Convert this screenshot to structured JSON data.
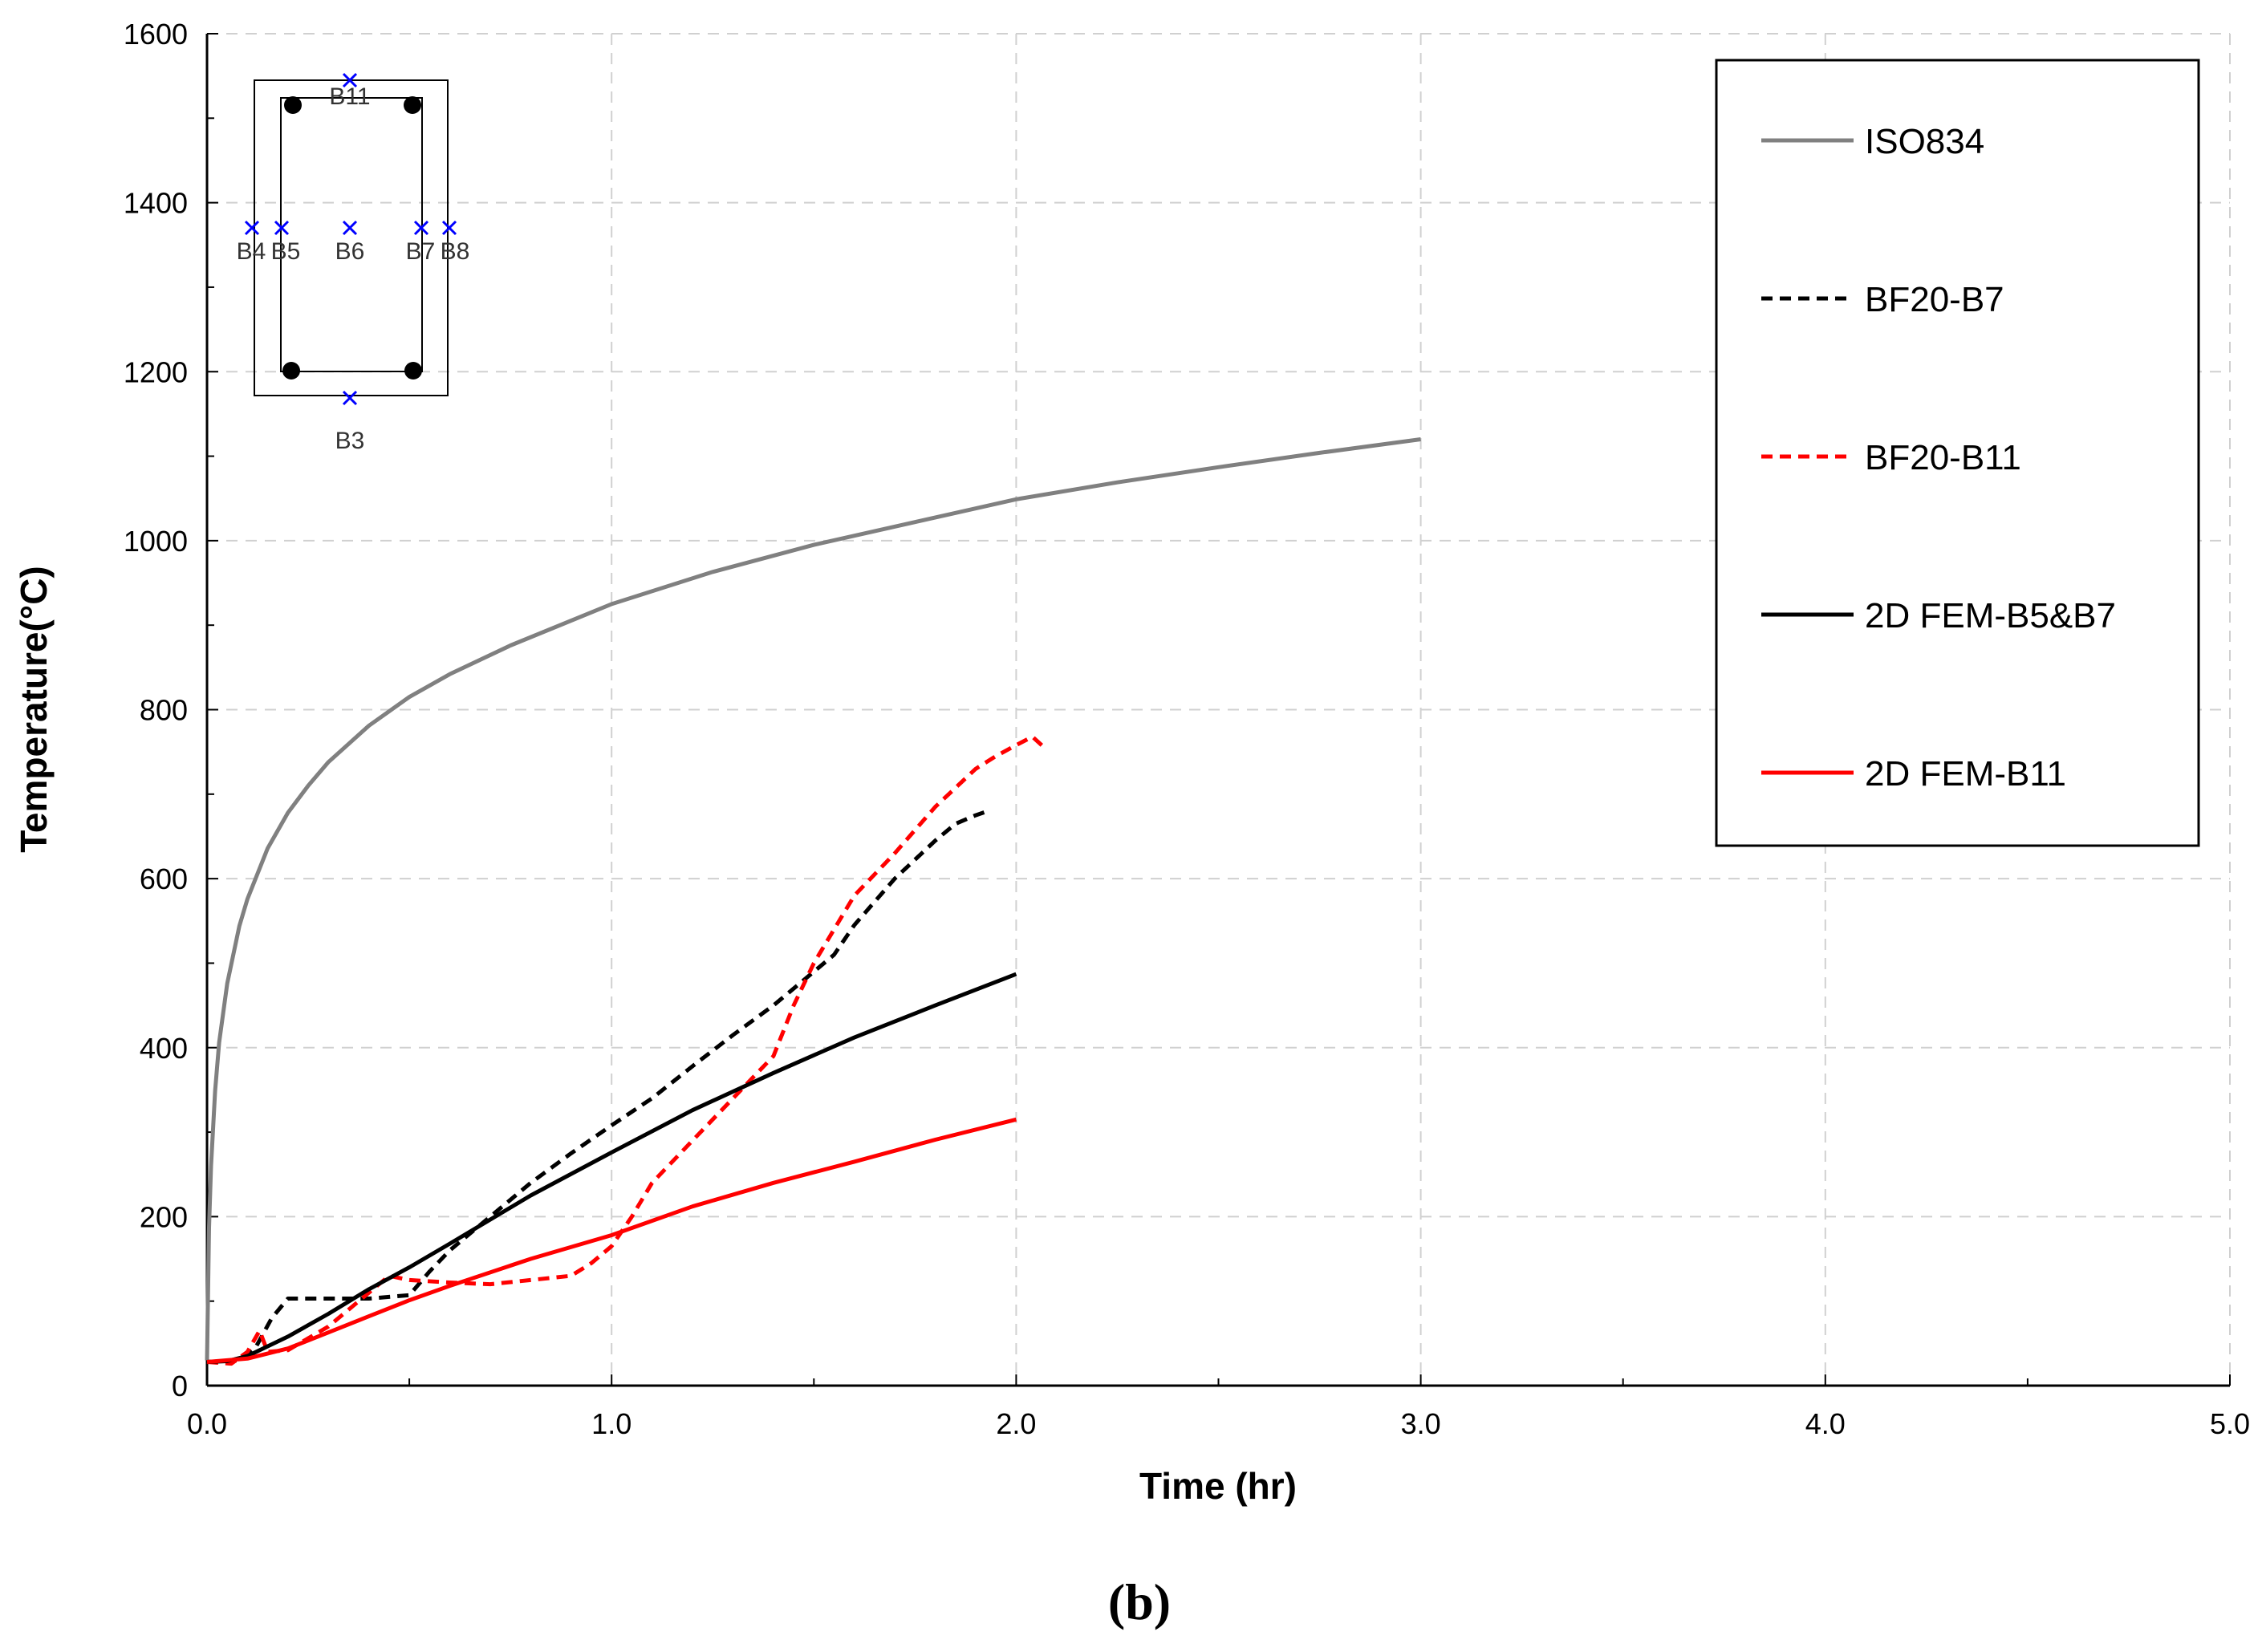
{
  "chart_data": {
    "type": "line",
    "title": "",
    "xlabel": "Time (hr)",
    "ylabel": "Temperature(°C)",
    "xlim": [
      0,
      5
    ],
    "ylim": [
      0,
      1600
    ],
    "x_ticks": [
      0.0,
      1.0,
      2.0,
      3.0,
      4.0,
      5.0
    ],
    "x_tick_labels": [
      "0.0",
      "1.0",
      "2.0",
      "3.0",
      "4.0",
      "5.0"
    ],
    "y_ticks": [
      0,
      200,
      400,
      600,
      800,
      1000,
      1200,
      1400,
      1600
    ],
    "y_tick_labels": [
      "0",
      "200",
      "400",
      "600",
      "800",
      "1000",
      "1200",
      "1400",
      "1600"
    ],
    "grid": true,
    "legend_position": "top-right",
    "series": [
      {
        "name": "ISO834",
        "color": "#808080",
        "dash": "solid",
        "x": [
          0,
          0.005,
          0.01,
          0.02,
          0.03,
          0.05,
          0.08,
          0.1,
          0.15,
          0.2,
          0.25,
          0.3,
          0.4,
          0.5,
          0.6,
          0.75,
          1.0,
          1.25,
          1.5,
          1.75,
          2.0,
          2.25,
          2.5,
          2.75,
          3.0
        ],
        "values": [
          30,
          187,
          260,
          349,
          406,
          476,
          544,
          576,
          636,
          678,
          710,
          738,
          781,
          815,
          842,
          876,
          925,
          963,
          995,
          1022,
          1049,
          1069,
          1087,
          1104,
          1120
        ]
      },
      {
        "name": "BF20-B7",
        "color": "#000000",
        "dash": "dashed",
        "x": [
          0,
          0.08,
          0.12,
          0.16,
          0.2,
          0.3,
          0.4,
          0.5,
          0.55,
          0.6,
          0.7,
          0.8,
          0.9,
          1.0,
          1.1,
          1.2,
          1.3,
          1.4,
          1.5,
          1.55,
          1.6,
          1.7,
          1.8,
          1.85,
          1.9,
          1.93
        ],
        "values": [
          28,
          30,
          45,
          80,
          103,
          103,
          103,
          107,
          135,
          160,
          200,
          240,
          275,
          308,
          340,
          378,
          415,
          450,
          490,
          510,
          545,
          600,
          645,
          665,
          675,
          680
        ]
      },
      {
        "name": "BF20-B11",
        "color": "#ff0000",
        "dash": "dashed",
        "x": [
          0,
          0.06,
          0.1,
          0.13,
          0.15,
          0.2,
          0.3,
          0.4,
          0.45,
          0.5,
          0.6,
          0.7,
          0.8,
          0.9,
          0.95,
          1.0,
          1.05,
          1.1,
          1.2,
          1.3,
          1.4,
          1.45,
          1.5,
          1.55,
          1.6,
          1.7,
          1.8,
          1.9,
          1.95,
          2.0,
          2.04,
          2.07
        ],
        "values": [
          28,
          26,
          40,
          65,
          40,
          42,
          70,
          110,
          130,
          125,
          122,
          120,
          125,
          130,
          145,
          165,
          200,
          240,
          290,
          340,
          390,
          450,
          500,
          540,
          580,
          630,
          685,
          730,
          745,
          758,
          768,
          755
        ]
      },
      {
        "name": "2D FEM-B5&B7",
        "color": "#000000",
        "dash": "solid",
        "x": [
          0,
          0.05,
          0.1,
          0.2,
          0.3,
          0.4,
          0.5,
          0.6,
          0.8,
          1.0,
          1.2,
          1.4,
          1.6,
          1.8,
          2.0
        ],
        "values": [
          28,
          29,
          35,
          58,
          85,
          114,
          140,
          168,
          225,
          276,
          326,
          370,
          412,
          450,
          487
        ]
      },
      {
        "name": "2D FEM-B11",
        "color": "#ff0000",
        "dash": "solid",
        "x": [
          0,
          0.1,
          0.2,
          0.3,
          0.4,
          0.5,
          0.6,
          0.8,
          1.0,
          1.2,
          1.4,
          1.6,
          1.8,
          2.0
        ],
        "values": [
          28,
          32,
          44,
          63,
          82,
          101,
          118,
          150,
          178,
          212,
          240,
          265,
          291,
          315
        ]
      }
    ],
    "inset": {
      "sensor_labels": [
        "B11",
        "B4",
        "B5",
        "B6",
        "B7",
        "B8",
        "B3"
      ]
    }
  },
  "caption": "(b)"
}
